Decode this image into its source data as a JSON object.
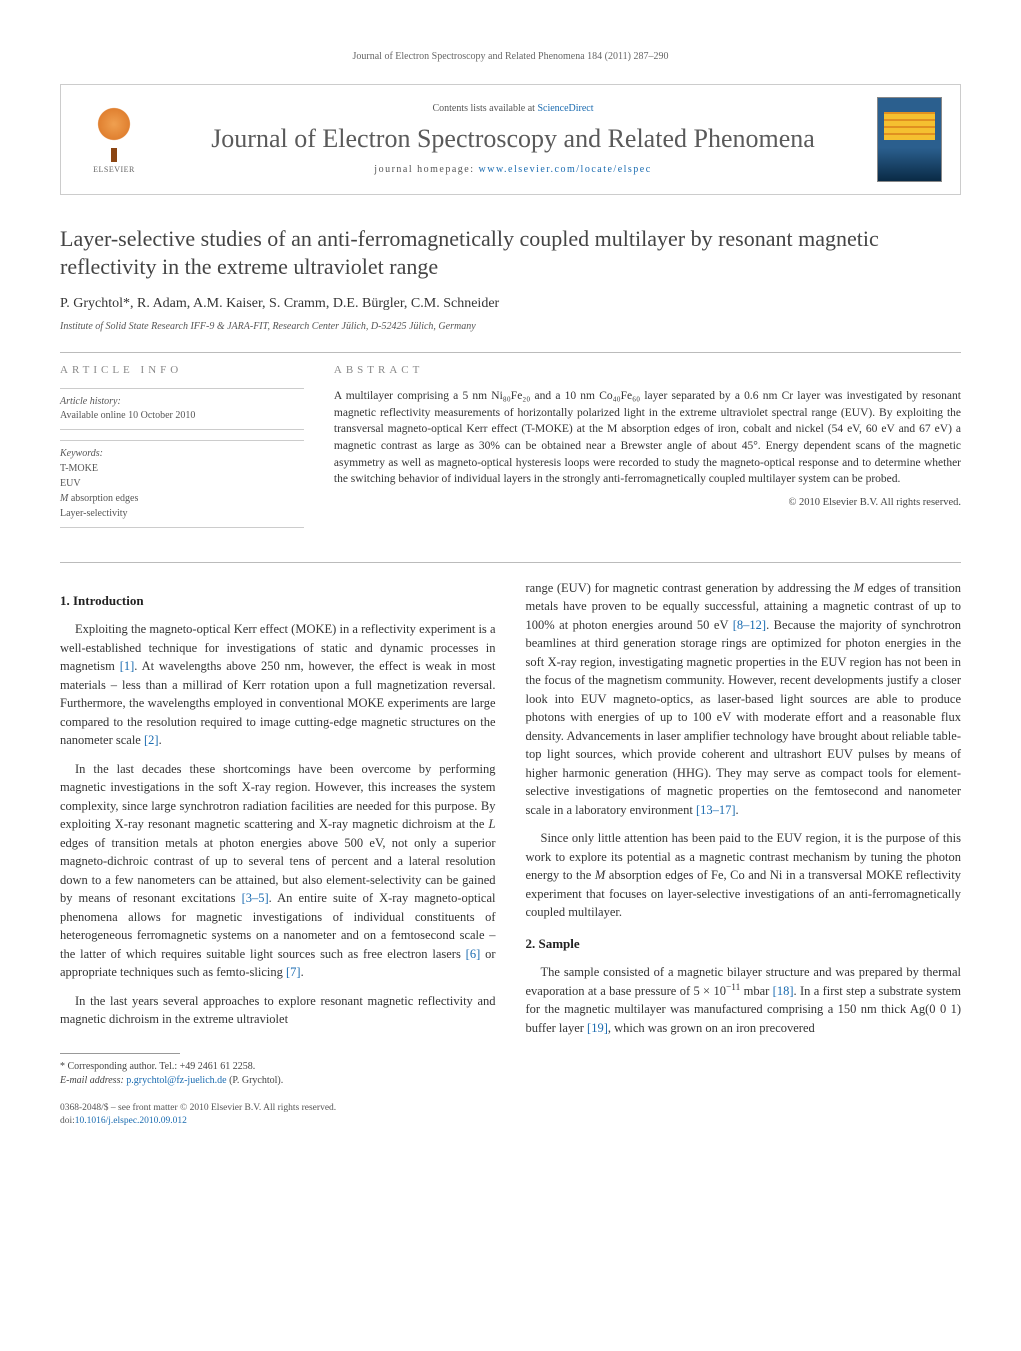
{
  "running_head": "Journal of Electron Spectroscopy and Related Phenomena 184 (2011) 287–290",
  "masthead": {
    "publisher": "ELSEVIER",
    "contents_prefix": "Contents lists available at ",
    "contents_link": "ScienceDirect",
    "journal_name": "Journal of Electron Spectroscopy and Related Phenomena",
    "homepage_prefix": "journal homepage: ",
    "homepage_url": "www.elsevier.com/locate/elspec",
    "colors": {
      "link": "#1a6bb0",
      "journal_text": "#5a5a5a",
      "cover_top": "#2b5f8e",
      "cover_bottom": "#0a2a45",
      "cover_band": "#f5c030"
    }
  },
  "article": {
    "title": "Layer-selective studies of an anti-ferromagnetically coupled multilayer by resonant magnetic reflectivity in the extreme ultraviolet range",
    "authors": "P. Grychtol*, R. Adam, A.M. Kaiser, S. Cramm, D.E. Bürgler, C.M. Schneider",
    "affiliation": "Institute of Solid State Research IFF-9 & JARA-FIT, Research Center Jülich, D-52425 Jülich, Germany"
  },
  "info": {
    "head": "article info",
    "history_label": "Article history:",
    "history_value": "Available online 10 October 2010",
    "keywords_label": "Keywords:",
    "keywords": [
      "T-MOKE",
      "EUV",
      "M absorption edges",
      "Layer-selectivity"
    ]
  },
  "abstract": {
    "head": "abstract",
    "text": "A multilayer comprising a 5 nm Ni₈₀Fe₂₀ and a 10 nm Co₄₀Fe₆₀ layer separated by a 0.6 nm Cr layer was investigated by resonant magnetic reflectivity measurements of horizontally polarized light in the extreme ultraviolet spectral range (EUV). By exploiting the transversal magneto-optical Kerr effect (T-MOKE) at the M absorption edges of iron, cobalt and nickel (54 eV, 60 eV and 67 eV) a magnetic contrast as large as 30% can be obtained near a Brewster angle of about 45°. Energy dependent scans of the magnetic asymmetry as well as magneto-optical hysteresis loops were recorded to study the magneto-optical response and to determine whether the switching behavior of individual layers in the strongly anti-ferromagnetically coupled multilayer system can be probed.",
    "copyright": "© 2010 Elsevier B.V. All rights reserved."
  },
  "sections": {
    "s1_title": "1. Introduction",
    "s1_p1": "Exploiting the magneto-optical Kerr effect (MOKE) in a reflectivity experiment is a well-established technique for investigations of static and dynamic processes in magnetism [1]. At wavelengths above 250 nm, however, the effect is weak in most materials – less than a millirad of Kerr rotation upon a full magnetization reversal. Furthermore, the wavelengths employed in conventional MOKE experiments are large compared to the resolution required to image cutting-edge magnetic structures on the nanometer scale [2].",
    "s1_p2": "In the last decades these shortcomings have been overcome by performing magnetic investigations in the soft X-ray region. However, this increases the system complexity, since large synchrotron radiation facilities are needed for this purpose. By exploiting X-ray resonant magnetic scattering and X-ray magnetic dichroism at the L edges of transition metals at photon energies above 500 eV, not only a superior magneto-dichroic contrast of up to several tens of percent and a lateral resolution down to a few nanometers can be attained, but also element-selectivity can be gained by means of resonant excitations [3–5]. An entire suite of X-ray magneto-optical phenomena allows for magnetic investigations of individual constituents of heterogeneous ferromagnetic systems on a nanometer and on a femtosecond scale – the latter of which requires suitable light sources such as free electron lasers [6] or appropriate techniques such as femto-slicing [7].",
    "s1_p3": "In the last years several approaches to explore resonant magnetic reflectivity and magnetic dichroism in the extreme ultraviolet",
    "s1_p4": "range (EUV) for magnetic contrast generation by addressing the M edges of transition metals have proven to be equally successful, attaining a magnetic contrast of up to 100% at photon energies around 50 eV [8–12]. Because the majority of synchrotron beamlines at third generation storage rings are optimized for photon energies in the soft X-ray region, investigating magnetic properties in the EUV region has not been in the focus of the magnetism community. However, recent developments justify a closer look into EUV magneto-optics, as laser-based light sources are able to produce photons with energies of up to 100 eV with moderate effort and a reasonable flux density. Advancements in laser amplifier technology have brought about reliable table-top light sources, which provide coherent and ultrashort EUV pulses by means of higher harmonic generation (HHG). They may serve as compact tools for element-selective investigations of magnetic properties on the femtosecond and nanometer scale in a laboratory environment [13–17].",
    "s1_p5": "Since only little attention has been paid to the EUV region, it is the purpose of this work to explore its potential as a magnetic contrast mechanism by tuning the photon energy to the M absorption edges of Fe, Co and Ni in a transversal MOKE reflectivity experiment that focuses on layer-selective investigations of an anti-ferromagnetically coupled multilayer.",
    "s2_title": "2. Sample",
    "s2_p1": "The sample consisted of a magnetic bilayer structure and was prepared by thermal evaporation at a base pressure of 5 × 10⁻¹¹ mbar [18]. In a first step a substrate system for the magnetic multilayer was manufactured comprising a 150 nm thick Ag(0 0 1) buffer layer [19], which was grown on an iron precovered"
  },
  "footnote": {
    "corr": "* Corresponding author. Tel.: +49 2461 61 2258.",
    "email_label": "E-mail address: ",
    "email": "p.grychtol@fz-juelich.de",
    "email_suffix": " (P. Grychtol)."
  },
  "bottom": {
    "line1": "0368-2048/$ – see front matter © 2010 Elsevier B.V. All rights reserved.",
    "doi": "doi:10.1016/j.elspec.2010.09.012"
  },
  "refs": {
    "r1": "[1]",
    "r2": "[2]",
    "r35": "[3–5]",
    "r6": "[6]",
    "r7": "[7]",
    "r812": "[8–12]",
    "r1317": "[13–17]",
    "r18": "[18]",
    "r19": "[19]"
  }
}
